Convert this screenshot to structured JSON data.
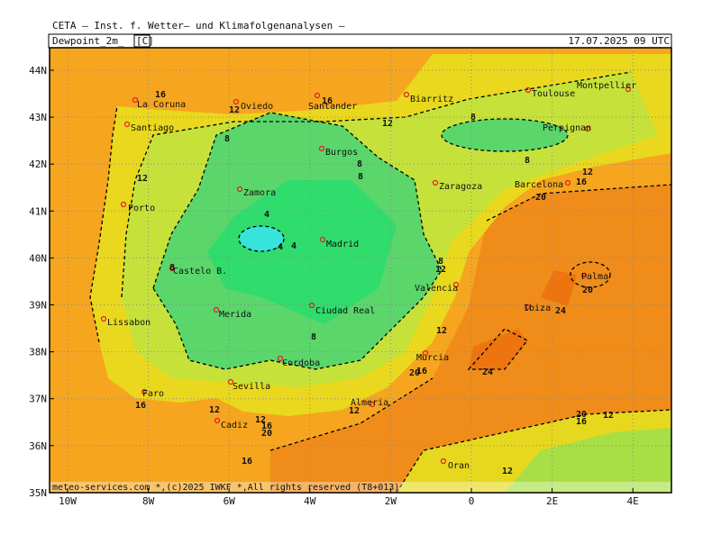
{
  "header": {
    "organization": "CETA – Inst. f. Wetter– und Klimafolgenanalysen –",
    "parameter": "Dewpoint_2m_",
    "unit": "[C]",
    "datetime": "17.07.2025 09 UTC"
  },
  "axes": {
    "lat_labels": [
      "44N",
      "43N",
      "42N",
      "41N",
      "40N",
      "39N",
      "38N",
      "37N",
      "36N",
      "35N"
    ],
    "lon_labels": [
      "10W",
      "8W",
      "6W",
      "4W",
      "2W",
      "0",
      "2E",
      "4E"
    ]
  },
  "cities": [
    "La Coruna",
    "Santiago",
    "Oviedo",
    "Santander",
    "Biarritz",
    "Toulouse",
    "Montpellier",
    "Perpignan",
    "Burgos",
    "Zamora",
    "Zaragoza",
    "Barcelona",
    "Porto",
    "Madrid",
    "Castelo B.",
    "Valencia",
    "Merida",
    "Ciudad Real",
    "Palma",
    "Lissabon",
    "Ibiza",
    "Murcia",
    "Cordoba",
    "Sevilla",
    "Faro",
    "Almeria",
    "Cadiz",
    "Oran"
  ],
  "contour_labels": [
    16,
    12,
    16,
    12,
    8,
    8,
    8,
    12,
    16,
    20,
    8,
    8,
    12,
    4,
    4,
    4,
    8,
    8,
    12,
    20,
    24,
    8,
    12,
    24,
    20,
    16,
    16,
    12,
    12,
    12,
    16,
    20,
    20,
    16,
    12,
    16,
    12
  ],
  "footer": "meteo-services.com *,(c)2025 IWKF *,All rights reserved (T8+013)"
}
